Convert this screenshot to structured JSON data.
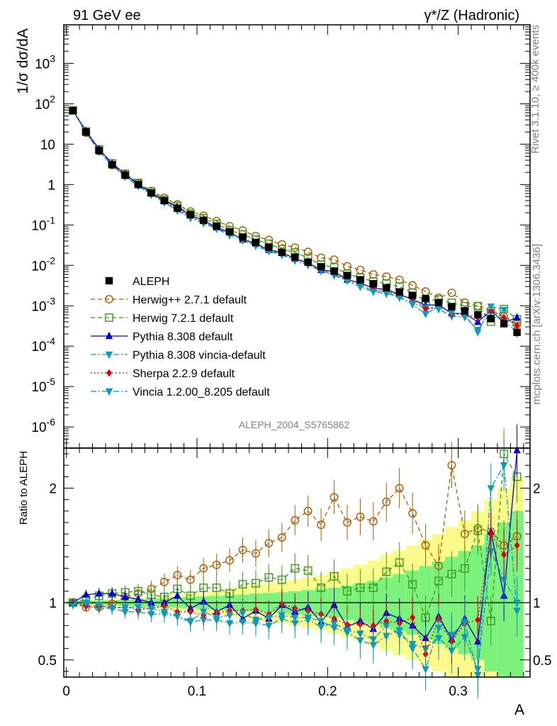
{
  "header": {
    "left": "91 GeV ee",
    "right": "γ*/Z (Hadronic)"
  },
  "side_text": {
    "top": "Rivet 3.1.10, ≥ 400k events",
    "bottom": "mcplots.cern.ch [arXiv:1306.3436]"
  },
  "analysis_label": "ALEPH_2004_S5765862",
  "colors": {
    "data": "#000000",
    "herwigpp": "#b05a00",
    "herwig7": "#3a9a1a",
    "pythia": "#0000cc",
    "pythia_vincia": "#0e9ab8",
    "sherpa": "#e00000",
    "vincia": "#0e9ab8",
    "band_inner": "#7cf27c",
    "band_outer": "#fbfb8c"
  },
  "chart_data": [
    {
      "type": "scatter",
      "panel": "main",
      "ylabel": "1/σ  dσ/dA",
      "yscale": "log",
      "ylim": [
        3e-07,
        9000
      ],
      "xlim": [
        -0.002,
        0.355
      ],
      "x": [
        0.005,
        0.015,
        0.025,
        0.035,
        0.045,
        0.055,
        0.065,
        0.075,
        0.085,
        0.095,
        0.105,
        0.115,
        0.125,
        0.135,
        0.145,
        0.155,
        0.165,
        0.175,
        0.185,
        0.195,
        0.205,
        0.215,
        0.225,
        0.235,
        0.245,
        0.255,
        0.265,
        0.275,
        0.285,
        0.295,
        0.305,
        0.315,
        0.325,
        0.335,
        0.345
      ],
      "y_ticks": [
        "10^-6",
        "10^-5",
        "10^-4",
        "10^-3",
        "10^-2",
        "10^-1",
        "1",
        "10",
        "10^2",
        "10^3"
      ],
      "legend": [
        "ALEPH",
        "Herwig++ 2.7.1 default",
        "Herwig 7.2.1 default",
        "Pythia 8.308 default",
        "Pythia 8.308 vincia-default",
        "Sherpa 2.2.9 default",
        "Vincia 1.2.00_8.205 default"
      ],
      "data_values": [
        68,
        20,
        7.0,
        3.1,
        1.7,
        1.0,
        0.62,
        0.4,
        0.26,
        0.18,
        0.13,
        0.094,
        0.068,
        0.05,
        0.037,
        0.028,
        0.021,
        0.016,
        0.012,
        0.0092,
        0.0072,
        0.0056,
        0.0044,
        0.0035,
        0.0028,
        0.0022,
        0.0018,
        0.0015,
        0.0012,
        0.00095,
        0.00075,
        0.0006,
        0.00048,
        0.00036,
        0.00022
      ]
    },
    {
      "type": "line",
      "panel": "ratio",
      "ylabel": "Ratio to ALEPH",
      "xlabel": "A",
      "ylim": [
        0.35,
        2.35
      ],
      "x_ticks": [
        "0",
        "0.1",
        "0.2",
        "0.3"
      ],
      "y_ticks": [
        "0.5",
        "1",
        "2"
      ],
      "band_outer": [
        0.02,
        0.02,
        0.025,
        0.03,
        0.035,
        0.04,
        0.05,
        0.06,
        0.07,
        0.08,
        0.09,
        0.1,
        0.12,
        0.14,
        0.16,
        0.17,
        0.18,
        0.2,
        0.22,
        0.24,
        0.27,
        0.3,
        0.33,
        0.37,
        0.42,
        0.46,
        0.5,
        0.55,
        0.6,
        0.66,
        0.72,
        0.8,
        0.9,
        1.0,
        1.1
      ],
      "band_inner": [
        0.015,
        0.015,
        0.018,
        0.02,
        0.025,
        0.03,
        0.035,
        0.04,
        0.045,
        0.05,
        0.055,
        0.06,
        0.065,
        0.07,
        0.08,
        0.085,
        0.09,
        0.1,
        0.11,
        0.12,
        0.13,
        0.15,
        0.17,
        0.19,
        0.22,
        0.25,
        0.28,
        0.32,
        0.36,
        0.4,
        0.45,
        0.5,
        0.6,
        0.7,
        0.8
      ],
      "series": [
        {
          "name": "Herwig++ 2.7.1 default",
          "key": "herwigpp",
          "marker": "circle-open",
          "dash": "6,4",
          "values": [
            1.0,
            0.96,
            0.96,
            0.99,
            1.05,
            1.08,
            1.12,
            1.18,
            1.24,
            1.2,
            1.3,
            1.33,
            1.37,
            1.46,
            1.43,
            1.52,
            1.57,
            1.72,
            1.8,
            1.68,
            1.92,
            1.7,
            1.75,
            1.71,
            1.88,
            2.0,
            1.78,
            1.5,
            1.32,
            2.2,
            1.6,
            1.65,
            1.62,
            1.5,
            1.58
          ]
        },
        {
          "name": "Herwig 7.2.1 default",
          "key": "herwig7",
          "marker": "square-open",
          "dash": "6,4",
          "values": [
            1.0,
            1.03,
            1.06,
            1.08,
            1.09,
            1.1,
            1.07,
            1.05,
            1.12,
            1.06,
            1.13,
            1.13,
            1.08,
            1.16,
            1.17,
            1.22,
            1.2,
            1.3,
            1.28,
            1.13,
            1.23,
            1.1,
            1.13,
            1.13,
            1.27,
            1.35,
            1.16,
            0.87,
            1.19,
            1.25,
            1.3,
            1.63,
            0.84,
            2.3,
            2.1
          ]
        },
        {
          "name": "Pythia 8.308 default",
          "key": "pythia",
          "marker": "triangle-up",
          "dash": "",
          "values": [
            1.0,
            1.07,
            1.08,
            1.08,
            1.05,
            1.03,
            1.0,
            1.0,
            1.06,
            0.95,
            1.01,
            0.92,
            0.98,
            0.86,
            0.93,
            0.86,
            0.98,
            0.92,
            0.96,
            0.83,
            0.98,
            0.79,
            0.84,
            0.77,
            0.91,
            0.86,
            0.8,
            0.69,
            0.88,
            0.68,
            0.86,
            0.66,
            1.62,
            1.06,
            2.33
          ]
        },
        {
          "name": "Pythia 8.308 vincia-default",
          "key": "pythia_vincia",
          "marker": "triangle-down",
          "dash": "8,3,2,3",
          "values": [
            1.0,
            0.97,
            0.95,
            0.95,
            0.92,
            0.92,
            0.9,
            0.9,
            0.88,
            0.83,
            0.85,
            0.85,
            0.82,
            0.83,
            0.82,
            0.8,
            0.86,
            0.82,
            0.85,
            0.79,
            0.82,
            0.76,
            0.73,
            0.68,
            0.8,
            0.72,
            0.64,
            0.6,
            0.69,
            0.58,
            0.7,
            0.42,
            1.45,
            1.2,
            1.0
          ]
        },
        {
          "name": "Sherpa 2.2.9 default",
          "key": "sherpa",
          "marker": "diamond",
          "dash": "2,3",
          "values": [
            1.0,
            0.97,
            0.97,
            0.96,
            0.96,
            0.94,
            0.95,
            0.97,
            0.92,
            0.92,
            0.89,
            0.91,
            0.93,
            0.93,
            0.94,
            0.9,
            0.99,
            0.95,
            0.93,
            0.9,
            0.86,
            0.81,
            0.81,
            0.8,
            0.84,
            0.82,
            0.87,
            0.55,
            0.86,
            0.66,
            0.82,
            0.85,
            1.6,
            1.42,
            1.5
          ]
        },
        {
          "name": "Vincia 1.2.00_8.205 default",
          "key": "vincia",
          "marker": "triangle-down",
          "dash": "8,3,2,3",
          "values": [
            0.98,
            1.0,
            0.98,
            0.95,
            0.96,
            0.96,
            0.95,
            0.92,
            0.88,
            0.84,
            0.92,
            0.87,
            0.89,
            0.91,
            0.85,
            0.87,
            0.89,
            0.87,
            0.87,
            0.84,
            0.78,
            0.74,
            0.67,
            0.63,
            0.71,
            0.76,
            0.6,
            0.42,
            0.78,
            0.72,
            0.83,
            0.37,
            2.0,
            2.2,
            0.93
          ]
        }
      ]
    }
  ]
}
